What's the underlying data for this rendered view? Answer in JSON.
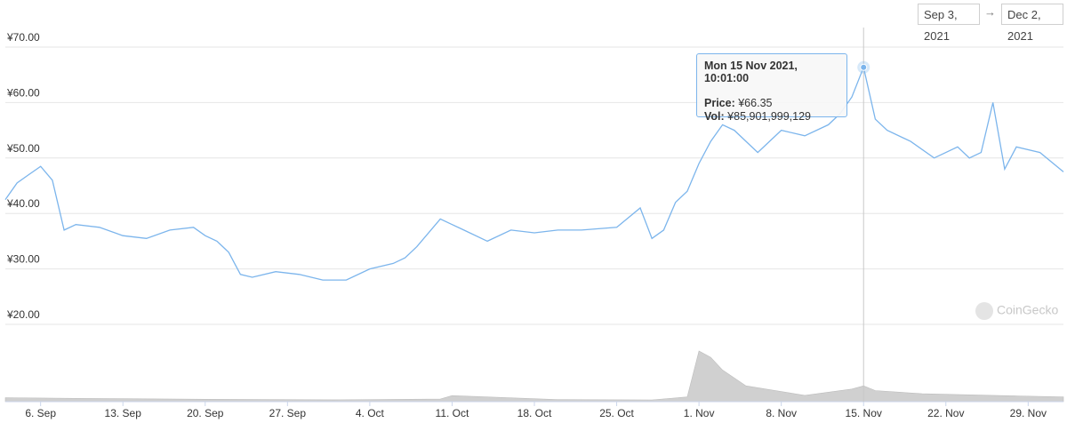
{
  "date_range": {
    "start": "Sep 3, 2021",
    "end": "Dec 2, 2021"
  },
  "tooltip": {
    "date": "Mon 15 Nov 2021, 10:01:00",
    "price_label": "Price:",
    "price_value": "¥66.35",
    "vol_label": "Vol:",
    "vol_value": "¥85,901,999,129"
  },
  "watermark": "CoinGecko",
  "colors": {
    "line": "#7cb5ec",
    "volume": "#d0d0d0",
    "grid": "#e6e6e6"
  },
  "chart_data": {
    "type": "line",
    "x_tick_labels": [
      "6. Sep",
      "13. Sep",
      "20. Sep",
      "27. Sep",
      "4. Oct",
      "11. Oct",
      "18. Oct",
      "25. Oct",
      "1. Nov",
      "8. Nov",
      "15. Nov",
      "22. Nov",
      "29. Nov"
    ],
    "y_tick_labels": [
      "¥70.00",
      "¥60.00",
      "¥50.00",
      "¥40.00",
      "¥30.00",
      "¥20.00"
    ],
    "ylim": [
      20,
      70
    ],
    "xlim": [
      "2021-09-03",
      "2021-12-02"
    ],
    "grid": true,
    "price_series": {
      "dates": [
        "2021-09-03",
        "2021-09-04",
        "2021-09-05",
        "2021-09-06",
        "2021-09-07",
        "2021-09-08",
        "2021-09-09",
        "2021-09-11",
        "2021-09-13",
        "2021-09-15",
        "2021-09-17",
        "2021-09-19",
        "2021-09-20",
        "2021-09-21",
        "2021-09-22",
        "2021-09-23",
        "2021-09-24",
        "2021-09-26",
        "2021-09-28",
        "2021-09-30",
        "2021-10-02",
        "2021-10-04",
        "2021-10-06",
        "2021-10-07",
        "2021-10-08",
        "2021-10-10",
        "2021-10-12",
        "2021-10-14",
        "2021-10-16",
        "2021-10-18",
        "2021-10-20",
        "2021-10-22",
        "2021-10-25",
        "2021-10-27",
        "2021-10-28",
        "2021-10-29",
        "2021-10-30",
        "2021-10-31",
        "2021-11-01",
        "2021-11-02",
        "2021-11-03",
        "2021-11-04",
        "2021-11-06",
        "2021-11-08",
        "2021-11-10",
        "2021-11-12",
        "2021-11-13",
        "2021-11-14",
        "2021-11-15",
        "2021-11-16",
        "2021-11-17",
        "2021-11-19",
        "2021-11-21",
        "2021-11-23",
        "2021-11-24",
        "2021-11-25",
        "2021-11-26",
        "2021-11-27",
        "2021-11-28",
        "2021-11-30",
        "2021-12-02"
      ],
      "values": [
        42.5,
        45.5,
        47,
        48.5,
        46,
        37,
        38,
        37.5,
        36,
        35.5,
        37,
        37.5,
        36,
        35,
        33,
        29,
        28.5,
        29.5,
        29,
        28,
        28,
        30,
        31,
        32,
        34,
        39,
        37,
        35,
        37,
        36.5,
        37,
        37,
        37.5,
        41,
        35.5,
        37,
        42,
        44,
        49,
        53,
        56,
        55,
        51,
        55,
        54,
        56,
        58,
        61,
        66.35,
        57,
        55,
        53,
        50,
        52,
        50,
        51,
        60,
        48,
        52,
        51,
        47.5
      ]
    },
    "volume_series": {
      "dates": [
        "2021-09-03",
        "2021-09-10",
        "2021-09-20",
        "2021-10-01",
        "2021-10-10",
        "2021-10-11",
        "2021-10-20",
        "2021-10-28",
        "2021-10-31",
        "2021-11-01",
        "2021-11-02",
        "2021-11-03",
        "2021-11-05",
        "2021-11-10",
        "2021-11-14",
        "2021-11-15",
        "2021-11-16",
        "2021-11-20",
        "2021-11-26",
        "2021-12-02"
      ],
      "values": [
        2.5,
        2,
        1.5,
        1.2,
        1.6,
        3.8,
        1.3,
        1.1,
        3,
        32,
        28,
        20,
        10,
        4,
        8,
        10,
        7,
        5,
        4,
        3
      ]
    }
  }
}
